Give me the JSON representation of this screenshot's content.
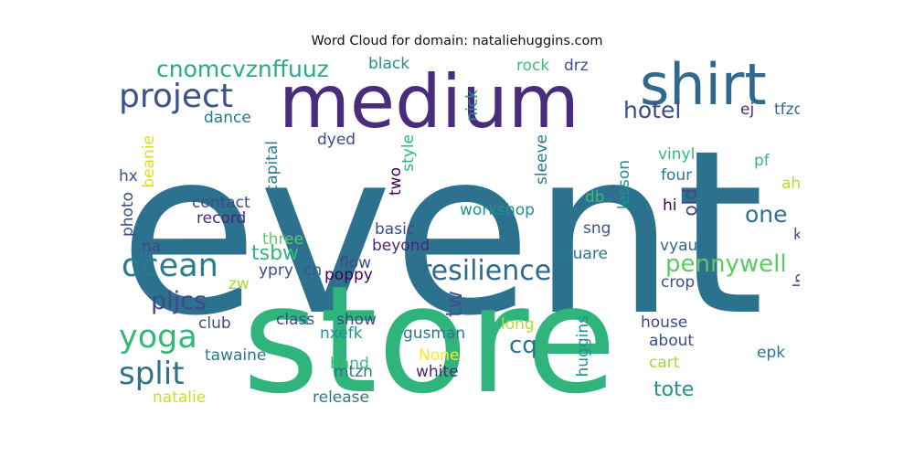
{
  "title": "Word Cloud for domain: nataliehuggins.com",
  "words": [
    {
      "text": "event",
      "color": "#2c728e"
    },
    {
      "text": "store",
      "color": "#2fb47c"
    },
    {
      "text": "medium",
      "color": "#472d7b"
    },
    {
      "text": "shirt",
      "color": "#31688e"
    },
    {
      "text": "project",
      "color": "#3b528b"
    },
    {
      "text": "cnomcvznffuuz",
      "color": "#27ad81"
    },
    {
      "text": "resilience",
      "color": "#31688e"
    },
    {
      "text": "ocean",
      "color": "#287c8e"
    },
    {
      "text": "split",
      "color": "#2c728e"
    },
    {
      "text": "yoga",
      "color": "#35b779"
    },
    {
      "text": "pennywell",
      "color": "#5ec962"
    },
    {
      "text": "pljcs",
      "color": "#3e4a89"
    },
    {
      "text": "hotel",
      "color": "#3e4989"
    },
    {
      "text": "one",
      "color": "#2c728e"
    },
    {
      "text": "cq",
      "color": "#2c728e"
    },
    {
      "text": "tote",
      "color": "#21918c"
    },
    {
      "text": "tsbw",
      "color": "#35b779"
    },
    {
      "text": "tw",
      "color": "#3b528b"
    },
    {
      "text": "old",
      "color": "#3e4a89"
    },
    {
      "text": "black",
      "color": "#21918c"
    },
    {
      "text": "rock",
      "color": "#3dbc74"
    },
    {
      "text": "drz",
      "color": "#3b528b"
    },
    {
      "text": "nick",
      "color": "#21918c"
    },
    {
      "text": "dance",
      "color": "#2a788e"
    },
    {
      "text": "ej",
      "color": "#472d7b"
    },
    {
      "text": "tfzq",
      "color": "#31688e"
    },
    {
      "text": "dyed",
      "color": "#3e4a89"
    },
    {
      "text": "beanie",
      "color": "#d8e219"
    },
    {
      "text": "style",
      "color": "#2fb47c"
    },
    {
      "text": "sleeve",
      "color": "#2a788e"
    },
    {
      "text": "vinyl",
      "color": "#35b779"
    },
    {
      "text": "four",
      "color": "#2a788e"
    },
    {
      "text": "pf",
      "color": "#35b779"
    },
    {
      "text": "capital",
      "color": "#2a788e"
    },
    {
      "text": "hx",
      "color": "#3b528b"
    },
    {
      "text": "two",
      "color": "#440154"
    },
    {
      "text": "lesson",
      "color": "#21918c"
    },
    {
      "text": "ahg",
      "color": "#b5de2b"
    },
    {
      "text": "db",
      "color": "#3dbc74"
    },
    {
      "text": "hi",
      "color": "#440154"
    },
    {
      "text": "contact",
      "color": "#3e4a89"
    },
    {
      "text": "workshop",
      "color": "#21918c"
    },
    {
      "text": "record",
      "color": "#482878"
    },
    {
      "text": "photo",
      "color": "#3e4a89"
    },
    {
      "text": "sng",
      "color": "#3b528b"
    },
    {
      "text": "basic",
      "color": "#3e4989"
    },
    {
      "text": "three",
      "color": "#5ec962"
    },
    {
      "text": "ky",
      "color": "#3b528b"
    },
    {
      "text": "na",
      "color": "#3e4a89"
    },
    {
      "text": "beyond",
      "color": "#482878"
    },
    {
      "text": "vyauk",
      "color": "#31688e"
    },
    {
      "text": "square",
      "color": "#2a788e"
    },
    {
      "text": "flow",
      "color": "#3e4a89"
    },
    {
      "text": "ypry",
      "color": "#3e4a89"
    },
    {
      "text": "cn",
      "color": "#3b528b"
    },
    {
      "text": "poppy",
      "color": "#440154"
    },
    {
      "text": "zw",
      "color": "#a0da39"
    },
    {
      "text": "crop",
      "color": "#3e4a89"
    },
    {
      "text": "lp",
      "color": "#3e4a89"
    },
    {
      "text": "club",
      "color": "#3e4a89"
    },
    {
      "text": "class",
      "color": "#3e4a89"
    },
    {
      "text": "show",
      "color": "#3e4a89"
    },
    {
      "text": "nxefk",
      "color": "#21918c"
    },
    {
      "text": "gusman",
      "color": "#2a788e"
    },
    {
      "text": "long",
      "color": "#b5de2b"
    },
    {
      "text": "huggins",
      "color": "#21918c"
    },
    {
      "text": "house",
      "color": "#3e4a89"
    },
    {
      "text": "about",
      "color": "#3e4a89"
    },
    {
      "text": "tawaine",
      "color": "#2a788e"
    },
    {
      "text": "None",
      "color": "#fde725"
    },
    {
      "text": "epk",
      "color": "#2a788e"
    },
    {
      "text": "hand",
      "color": "#3dbc74"
    },
    {
      "text": "cart",
      "color": "#a0da39"
    },
    {
      "text": "mtzn",
      "color": "#2a788e"
    },
    {
      "text": "white",
      "color": "#482878"
    },
    {
      "text": "natalie",
      "color": "#c8e020"
    },
    {
      "text": "release",
      "color": "#2a788e"
    }
  ]
}
